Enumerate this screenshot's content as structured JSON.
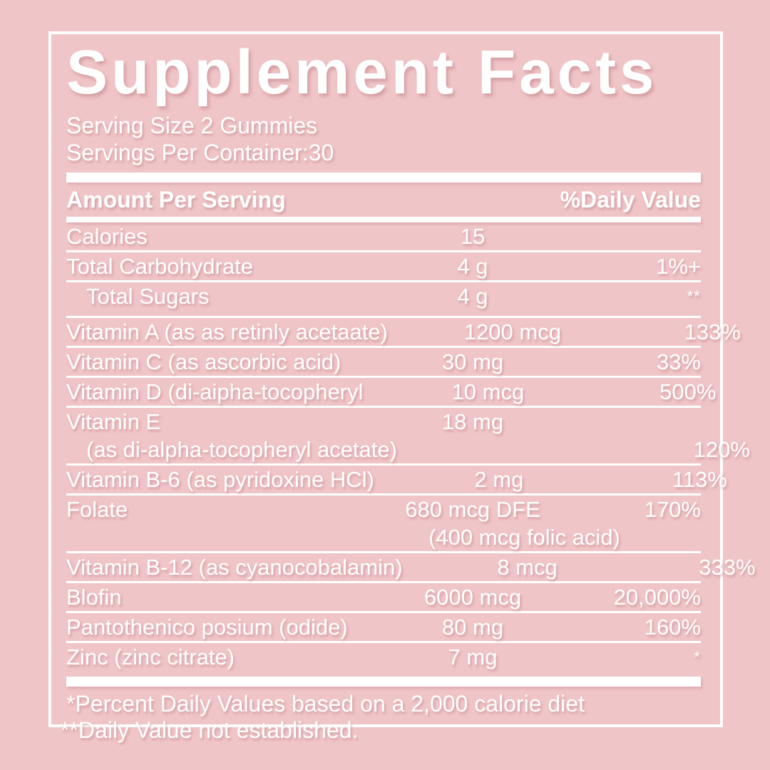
{
  "label": {
    "title": "Supplement Facts",
    "serving_size": "Serving Size 2 Gummies",
    "servings_per_container": "Servings Per Container:30",
    "columns": {
      "amount_header": "Amount Per Serving",
      "daily_value_header": "%Daily Value"
    },
    "rows": [
      {
        "name": "Calories",
        "amount": "15",
        "daily": ""
      },
      {
        "name": "Total Carbohydrate",
        "amount": "4 g",
        "daily": "1%+"
      },
      {
        "name": "Total Sugars",
        "amount": "4 g",
        "daily": "**",
        "indent": true,
        "daily_sup": true
      },
      {
        "name": "Vitamin A (as as retinly acetaate)",
        "amount": "1200 mcg",
        "daily": "133%"
      },
      {
        "name": "Vitamin C (as ascorbic acid)",
        "amount": "30 mg",
        "daily": "33%"
      },
      {
        "name": "Vitamin D (di-aipha-tocopheryl",
        "amount": "10 mcg",
        "daily": "500%"
      },
      {
        "name": "Vitamin E",
        "amount": "18 mg",
        "daily": "",
        "line2": {
          "name": "(as di-alpha-tocopheryl acetate)",
          "daily": "120%"
        }
      },
      {
        "name": "Vitamin B-6 (as pyridoxine HCl)",
        "amount": "2 mg",
        "daily": "113%"
      },
      {
        "name": "Folate",
        "amount": "680 mcg DFE",
        "daily": "170%",
        "line2": {
          "amount": "(400 mcg folic acid)"
        }
      },
      {
        "name": "Vitamin B-12 (as cyanocobalamin)",
        "amount": "8 mcg",
        "daily": "333%"
      },
      {
        "name": "Blofin",
        "amount": "6000 mcg",
        "daily": "20,000%"
      },
      {
        "name": "Pantothenico posium (odide)",
        "amount": "80 mg",
        "daily": "160%"
      },
      {
        "name": "Zinc (zinc citrate)",
        "amount": "7 mg",
        "daily": "*",
        "daily_sup": true
      }
    ],
    "footnotes": [
      "*Percent Daily Values based on a 2,000 calorie diet",
      "**Daily Value not established."
    ],
    "colors": {
      "background": "#F0C5C7",
      "foreground": "#FFFFFF"
    }
  }
}
